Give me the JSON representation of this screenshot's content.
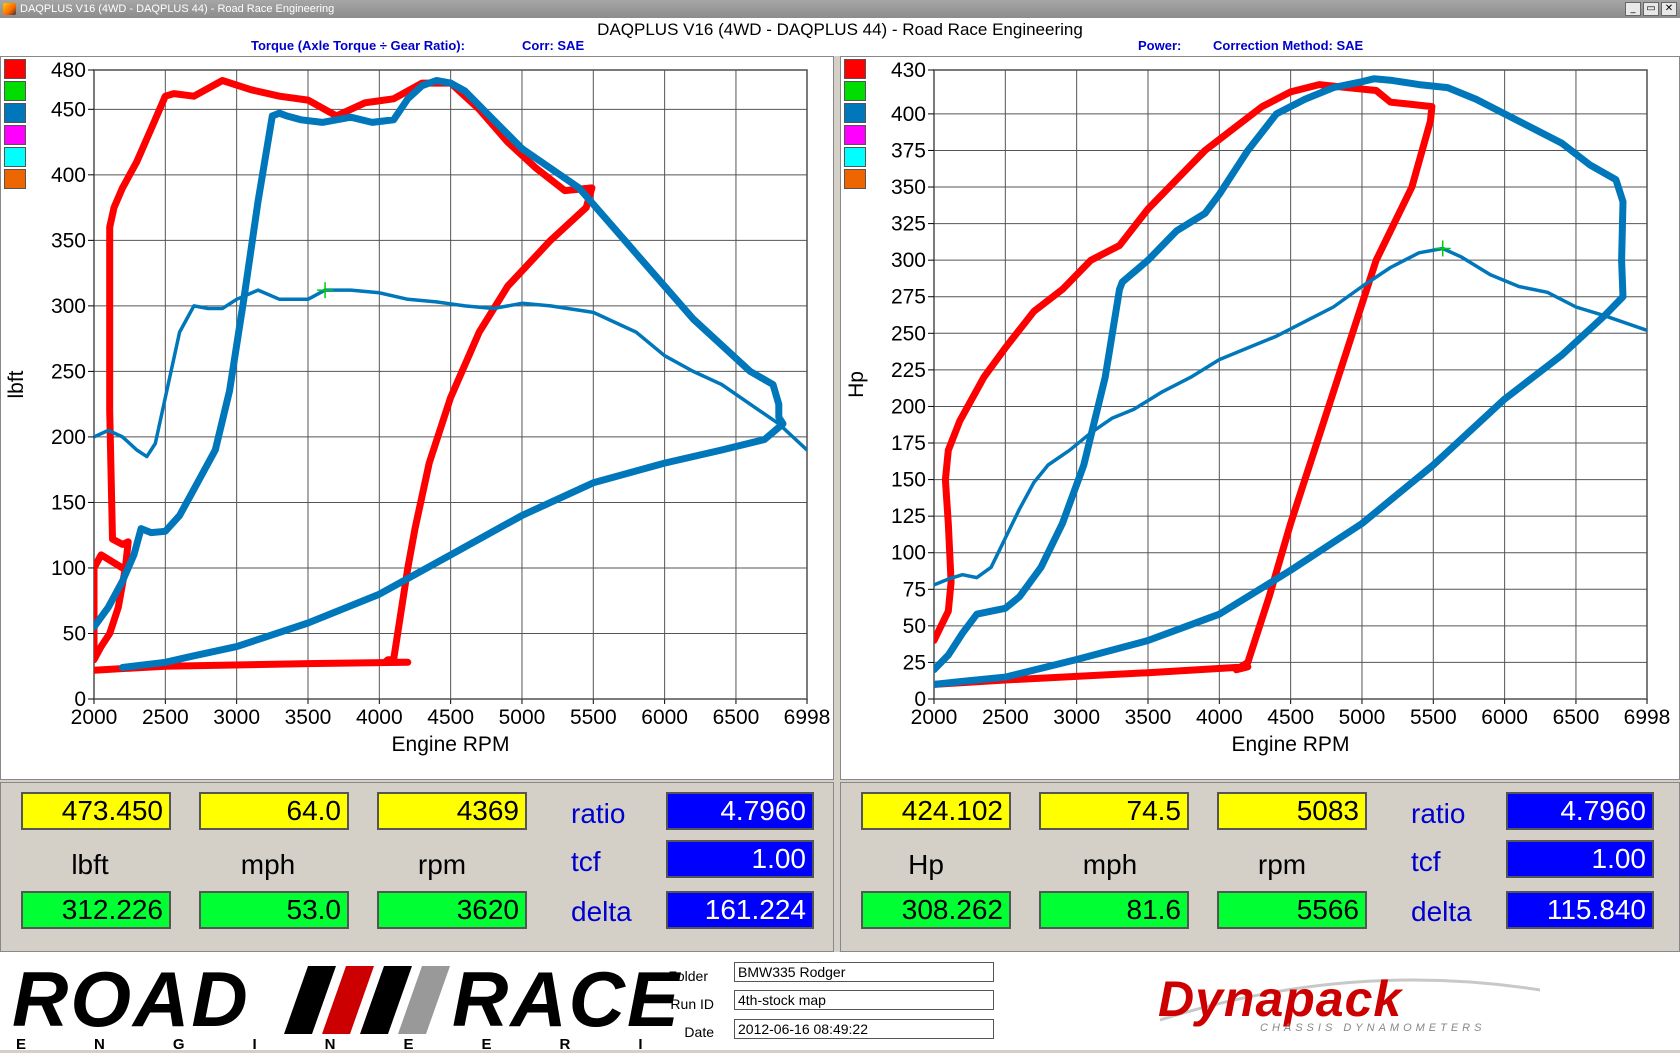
{
  "window": {
    "title": "DAQPLUS V16 (4WD - DAQPLUS 44) - Road Race Engineering",
    "buttons": [
      "_",
      "▭",
      "✕"
    ]
  },
  "header": {
    "main_title": "DAQPLUS V16 (4WD - DAQPLUS 44) - Road Race Engineering",
    "left_sub": "Torque (Axle Torque ÷ Gear Ratio):",
    "left_corr": "Corr: SAE",
    "right_sub": "Power:",
    "right_corr": "Correction Method: SAE"
  },
  "legend_swatches": [
    "#ff0000",
    "#00dd00",
    "#0077bb",
    "#ff00ff",
    "#00ffff",
    "#ee6600"
  ],
  "chart_data": [
    {
      "type": "line",
      "xlabel": "Engine RPM",
      "ylabel": "lbft",
      "xlim": [
        2000,
        6998
      ],
      "ylim": [
        0,
        480
      ],
      "x_ticks": [
        2000,
        2500,
        3000,
        3500,
        4000,
        4500,
        5000,
        5500,
        6000,
        6500,
        6998
      ],
      "y_ticks": [
        0,
        50,
        100,
        150,
        200,
        250,
        300,
        350,
        400,
        450,
        480
      ],
      "grid": true,
      "series": [
        {
          "color": "#ff0000",
          "width": 7,
          "x": [
            2200,
            2050,
            2000,
            2000,
            2050,
            2110,
            2170,
            2220,
            2240,
            2200,
            2130,
            2110,
            2110,
            2140,
            2200,
            2300,
            2400,
            2500,
            2560,
            2700,
            2900,
            3100,
            3300,
            3500,
            3700,
            3900,
            4100,
            4300,
            4500,
            4700,
            4900,
            5100,
            5300,
            5490,
            5450,
            5200,
            4900,
            4700,
            4500,
            4350,
            4250,
            4200,
            4100,
            4060,
            4040,
            4200,
            3500,
            2500,
            2000
          ],
          "y": [
            100,
            110,
            100,
            30,
            40,
            50,
            70,
            100,
            120,
            118,
            122,
            220,
            360,
            375,
            390,
            410,
            435,
            460,
            462,
            460,
            472,
            465,
            460,
            457,
            445,
            455,
            458,
            470,
            470,
            450,
            425,
            405,
            388,
            390,
            375,
            350,
            315,
            280,
            230,
            180,
            130,
            100,
            30,
            30,
            28,
            28,
            27,
            25,
            22
          ]
        },
        {
          "color": "#0077bb",
          "width": 7,
          "x": [
            2000,
            2100,
            2200,
            2280,
            2330,
            2400,
            2500,
            2600,
            2700,
            2850,
            2950,
            3050,
            3150,
            3250,
            3300,
            3350,
            3450,
            3600,
            3800,
            3950,
            4100,
            4200,
            4300,
            4400,
            4500,
            4600,
            4800,
            5000,
            5200,
            5400,
            5600,
            5800,
            6000,
            6200,
            6400,
            6600,
            6760,
            6800,
            6800,
            6830,
            6700,
            6400,
            6000,
            5500,
            5000,
            4500,
            4000,
            3500,
            3000,
            2700,
            2500,
            2200
          ],
          "y": [
            55,
            70,
            90,
            110,
            130,
            127,
            128,
            140,
            160,
            190,
            235,
            305,
            380,
            445,
            447,
            445,
            442,
            440,
            444,
            440,
            442,
            458,
            468,
            472,
            470,
            464,
            442,
            420,
            405,
            390,
            365,
            340,
            315,
            290,
            270,
            250,
            240,
            225,
            215,
            210,
            198,
            190,
            180,
            165,
            140,
            110,
            80,
            58,
            40,
            33,
            28,
            24
          ]
        },
        {
          "color": "#0077bb",
          "width": 3.5,
          "x": [
            2000,
            2100,
            2200,
            2300,
            2370,
            2430,
            2500,
            2600,
            2700,
            2800,
            2900,
            3000,
            3150,
            3300,
            3500,
            3620,
            3800,
            4000,
            4200,
            4400,
            4600,
            4800,
            5000,
            5200,
            5500,
            5800,
            6000,
            6200,
            6400,
            6600,
            6800,
            6998
          ],
          "y": [
            200,
            205,
            200,
            190,
            185,
            195,
            230,
            280,
            300,
            298,
            298,
            305,
            312,
            305,
            305,
            312,
            312,
            310,
            305,
            303,
            300,
            298,
            302,
            300,
            295,
            280,
            262,
            250,
            240,
            225,
            210,
            190
          ]
        }
      ],
      "cursor": {
        "x": 3620,
        "y": 312
      }
    },
    {
      "type": "line",
      "xlabel": "Engine RPM",
      "ylabel": "Hp",
      "xlim": [
        2000,
        6998
      ],
      "ylim": [
        0,
        430
      ],
      "x_ticks": [
        2000,
        2500,
        3000,
        3500,
        4000,
        4500,
        5000,
        5500,
        6000,
        6500,
        6998
      ],
      "y_ticks": [
        0,
        25,
        50,
        75,
        100,
        125,
        150,
        175,
        200,
        225,
        250,
        275,
        300,
        325,
        350,
        375,
        400,
        430
      ],
      "grid": true,
      "series": [
        {
          "color": "#ff0000",
          "width": 7,
          "x": [
            2000,
            2050,
            2100,
            2120,
            2100,
            2080,
            2100,
            2180,
            2350,
            2500,
            2700,
            2900,
            3100,
            3300,
            3500,
            3700,
            3900,
            4100,
            4300,
            4500,
            4700,
            4900,
            5100,
            5200,
            5300,
            5490,
            5480,
            5350,
            5100,
            4900,
            4700,
            4500,
            4350,
            4200,
            4120,
            4200,
            3500,
            2500,
            2000
          ],
          "y": [
            40,
            50,
            60,
            80,
            120,
            150,
            170,
            190,
            220,
            240,
            265,
            280,
            300,
            310,
            335,
            355,
            375,
            390,
            405,
            415,
            420,
            418,
            416,
            408,
            407,
            405,
            395,
            350,
            300,
            240,
            180,
            120,
            70,
            25,
            20,
            22,
            18,
            13,
            10
          ]
        },
        {
          "color": "#0077bb",
          "width": 7,
          "x": [
            2000,
            2100,
            2200,
            2300,
            2400,
            2500,
            2600,
            2750,
            2900,
            3050,
            3200,
            3300,
            3320,
            3500,
            3700,
            3900,
            4000,
            4200,
            4400,
            4600,
            4800,
            5000,
            5083,
            5200,
            5400,
            5600,
            5800,
            6000,
            6200,
            6400,
            6600,
            6780,
            6830,
            6820,
            6830,
            6700,
            6400,
            6000,
            5500,
            5000,
            4500,
            4000,
            3500,
            3000,
            2500,
            2200,
            2000
          ],
          "y": [
            20,
            30,
            45,
            58,
            60,
            62,
            70,
            90,
            120,
            160,
            220,
            280,
            285,
            300,
            320,
            332,
            345,
            375,
            400,
            410,
            418,
            422,
            424,
            423,
            420,
            418,
            410,
            400,
            390,
            380,
            365,
            355,
            340,
            300,
            275,
            262,
            235,
            205,
            160,
            120,
            88,
            58,
            40,
            27,
            15,
            12,
            10
          ]
        },
        {
          "color": "#0077bb",
          "width": 3.5,
          "x": [
            2000,
            2100,
            2200,
            2300,
            2400,
            2500,
            2600,
            2700,
            2800,
            2950,
            3100,
            3250,
            3400,
            3600,
            3800,
            4000,
            4200,
            4400,
            4600,
            4800,
            5000,
            5200,
            5400,
            5566,
            5700,
            5900,
            6100,
            6300,
            6500,
            6700,
            6998
          ],
          "y": [
            78,
            82,
            85,
            83,
            90,
            110,
            130,
            148,
            160,
            170,
            182,
            192,
            198,
            210,
            220,
            232,
            240,
            248,
            258,
            268,
            282,
            295,
            305,
            308,
            302,
            290,
            282,
            278,
            268,
            262,
            252
          ]
        }
      ],
      "cursor": {
        "x": 5566,
        "y": 308
      }
    }
  ],
  "readouts": {
    "left": {
      "top": [
        "473.450",
        "64.0",
        "4369"
      ],
      "units": [
        "lbft",
        "mph",
        "rpm"
      ],
      "bottom": [
        "312.226",
        "53.0",
        "3620"
      ],
      "ratio_label": "ratio",
      "ratio": "4.7960",
      "tcf_label": "tcf",
      "tcf": "1.00",
      "delta_label": "delta",
      "delta": "161.224"
    },
    "right": {
      "top": [
        "424.102",
        "74.5",
        "5083"
      ],
      "units": [
        "Hp",
        "mph",
        "rpm"
      ],
      "bottom": [
        "308.262",
        "81.6",
        "5566"
      ],
      "ratio_label": "ratio",
      "ratio": "4.7960",
      "tcf_label": "tcf",
      "tcf": "1.00",
      "delta_label": "delta",
      "delta": "115.840"
    }
  },
  "footer": {
    "logo_road": "ROAD",
    "logo_race": "RACE",
    "logo_engineering": "ENGINEERING",
    "folder_label": "Folder",
    "folder": "BMW335 Rodger",
    "runid_label": "Run ID",
    "runid": "4th-stock map",
    "date_label": "Date",
    "date": "2012-06-16 08:49:22",
    "dynapack": "Dynapack",
    "dynapack_sub": "CHASSIS DYNAMOMETERS"
  }
}
